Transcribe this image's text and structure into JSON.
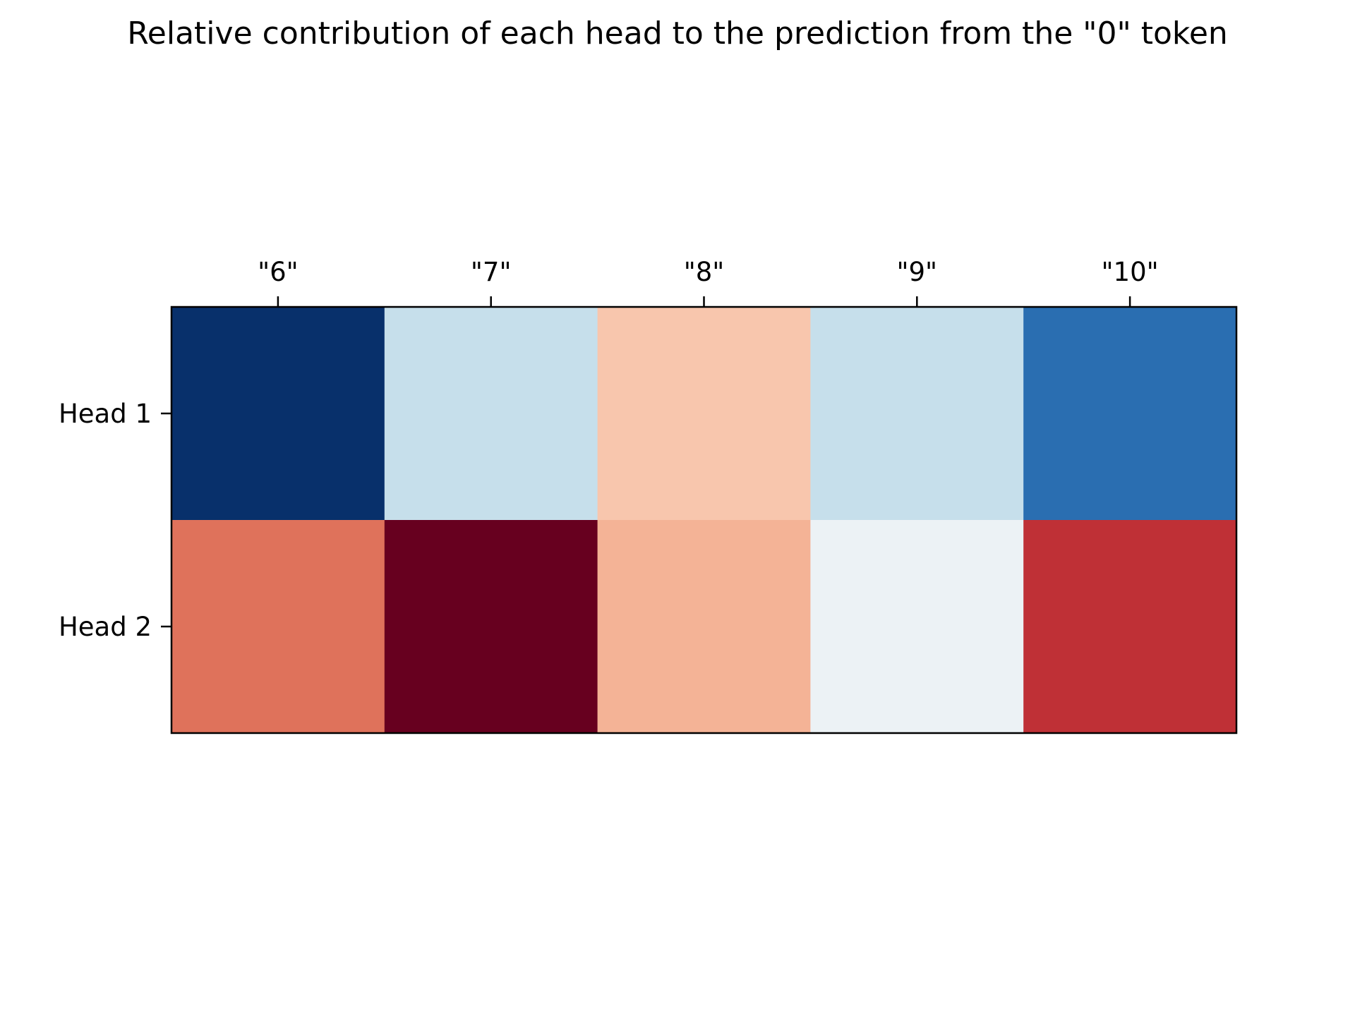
{
  "chart_data": {
    "type": "heatmap",
    "title": "Relative contribution of each head to the prediction from the \"0\" token",
    "xlabel": "",
    "ylabel": "",
    "x_categories": [
      "\"6\"",
      "\"7\"",
      "\"8\"",
      "\"9\"",
      "\"10\""
    ],
    "y_categories": [
      "Head 1",
      "Head 2"
    ],
    "x_axis_position": "top",
    "colormap": "RdBu (red = high, blue = low)",
    "colorbar": false,
    "grid": false,
    "values": [
      [
        -1.0,
        -0.25,
        0.25,
        -0.25,
        -0.75
      ],
      [
        0.6,
        1.0,
        0.32,
        -0.08,
        0.82
      ]
    ],
    "cell_colors": [
      [
        "#08306b",
        "#c6dfeb",
        "#f8c6ad",
        "#c6dfeb",
        "#2a6eb1"
      ],
      [
        "#df725b",
        "#67001f",
        "#f4b396",
        "#ecf2f5",
        "#bf3036"
      ]
    ]
  }
}
